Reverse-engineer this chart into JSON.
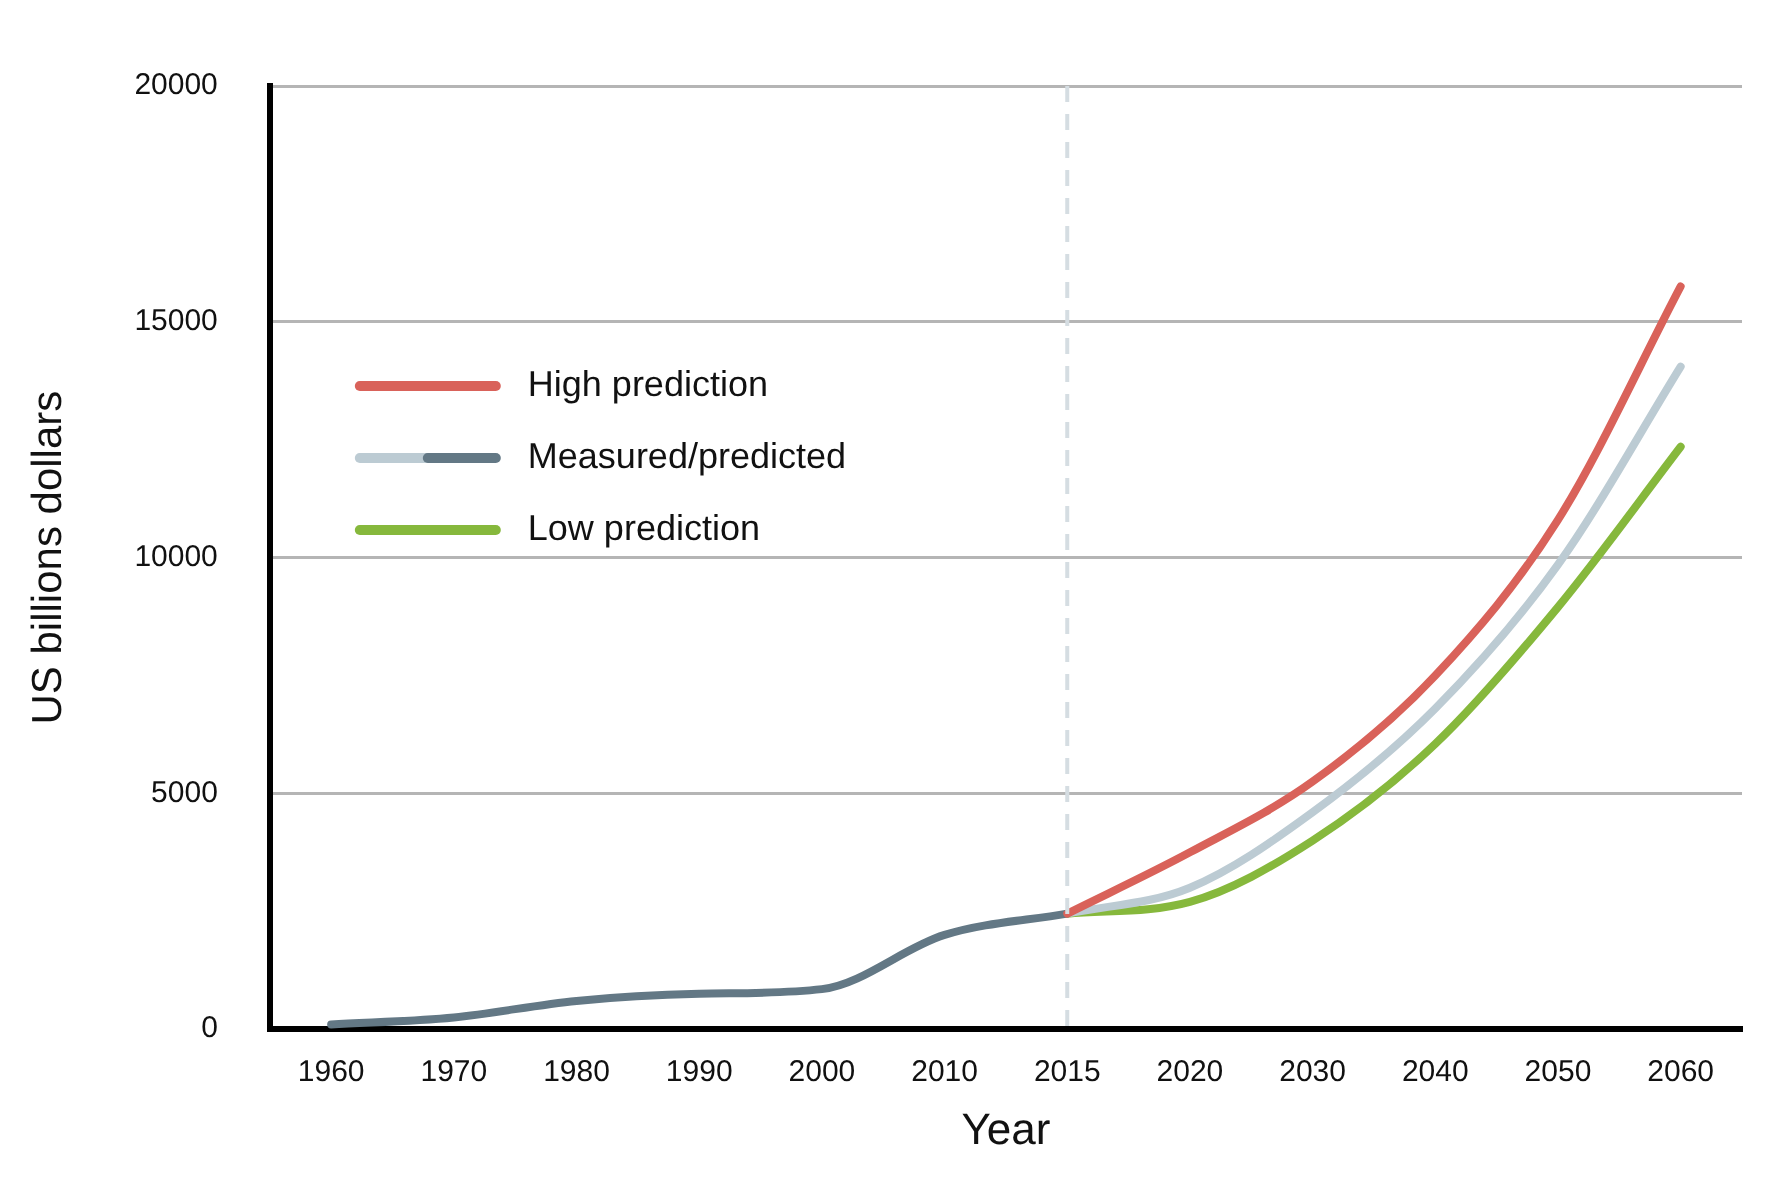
{
  "chart_data": {
    "type": "line",
    "xlabel": "Year",
    "ylabel": "US billions dollars",
    "categories": [
      "1960",
      "1970",
      "1980",
      "1990",
      "2000",
      "2010",
      "2015",
      "2020",
      "2030",
      "2040",
      "2050",
      "2060"
    ],
    "series": [
      {
        "name": "High prediction",
        "color": "#d9625a",
        "values": [
          null,
          null,
          null,
          null,
          null,
          null,
          2450,
          3750,
          5250,
          7500,
          10800,
          15750
        ]
      },
      {
        "name": "Measured/predicted",
        "color": "#637885",
        "values": [
          100,
          250,
          600,
          750,
          850,
          2000,
          2450,
          null,
          null,
          null,
          null,
          null
        ]
      },
      {
        "color": "#bccbd3",
        "values": [
          null,
          null,
          null,
          null,
          null,
          null,
          2450,
          3000,
          4600,
          6800,
          9850,
          14050
        ]
      },
      {
        "name": "Low prediction",
        "color": "#86b83c",
        "values": [
          null,
          null,
          null,
          null,
          null,
          null,
          2450,
          2700,
          4000,
          6050,
          8950,
          12350
        ]
      }
    ],
    "ylim": [
      0,
      20000
    ],
    "yticks": [
      0,
      5000,
      10000,
      15000,
      20000
    ],
    "grid": "y",
    "legend": "top left",
    "marker": "none",
    "line_style": "solid",
    "ref_lines": [
      {
        "axis": "x",
        "value": "2015",
        "color": "#d5dde2",
        "line_style": "dashed"
      }
    ]
  }
}
